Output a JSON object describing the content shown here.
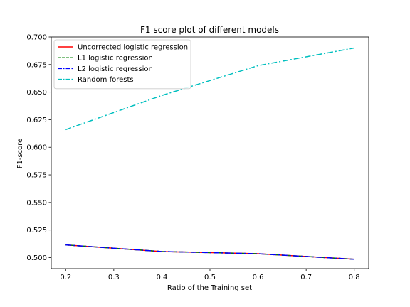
{
  "chart_data": {
    "type": "line",
    "title": "F1 score plot of different models",
    "xlabel": "Ratio of the Training set",
    "ylabel": "F1-score",
    "x": [
      0.2,
      0.4,
      0.6,
      0.8
    ],
    "xlim": [
      0.17,
      0.83
    ],
    "ylim": [
      0.49,
      0.7
    ],
    "xticks": [
      0.2,
      0.3,
      0.4,
      0.5,
      0.6,
      0.7,
      0.8
    ],
    "yticks": [
      0.5,
      0.525,
      0.55,
      0.575,
      0.6,
      0.625,
      0.65,
      0.675,
      0.7
    ],
    "xtick_labels": [
      "0.2",
      "0.3",
      "0.4",
      "0.5",
      "0.6",
      "0.7",
      "0.8"
    ],
    "ytick_labels": [
      "0.500",
      "0.525",
      "0.550",
      "0.575",
      "0.600",
      "0.625",
      "0.650",
      "0.675",
      "0.700"
    ],
    "grid": false,
    "legend_position": "top-left",
    "series": [
      {
        "name": "Uncorrected logistic regression",
        "values": [
          0.5115,
          0.5055,
          0.5035,
          0.4985
        ],
        "color": "#ff0000",
        "dash": "solid"
      },
      {
        "name": "L1 logistic regression",
        "values": [
          0.5115,
          0.5055,
          0.5035,
          0.4985
        ],
        "color": "#008000",
        "dash": "dashed"
      },
      {
        "name": "L2 logistic regression",
        "values": [
          0.5115,
          0.5055,
          0.5035,
          0.4985
        ],
        "color": "#0000ff",
        "dash": "dashdot"
      },
      {
        "name": "Random forests",
        "values": [
          0.616,
          0.647,
          0.674,
          0.69
        ],
        "color": "#00bfbf",
        "dash": "dashdot"
      }
    ]
  }
}
